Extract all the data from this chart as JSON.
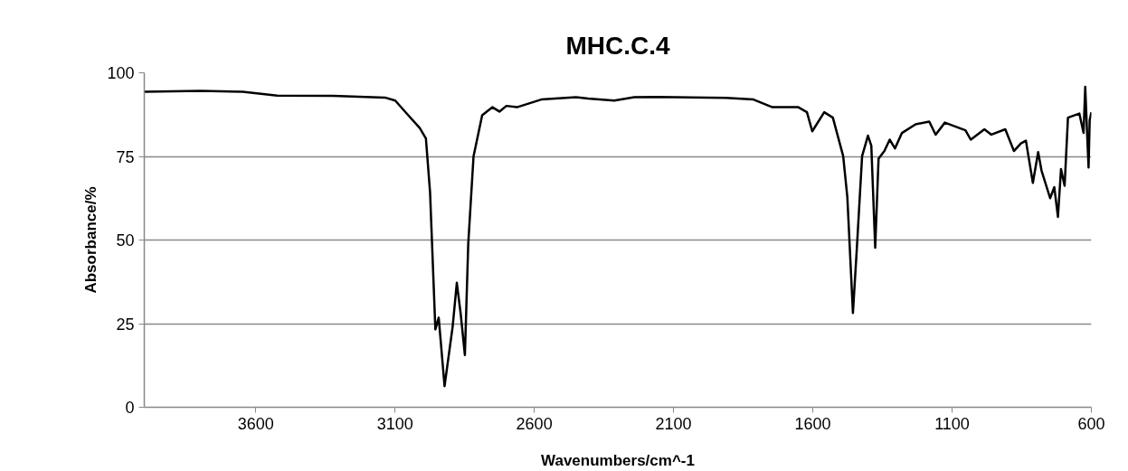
{
  "chart_data": {
    "type": "line",
    "title": "MHC.C.4",
    "xlabel": "Wavenumbers/cm^-1",
    "ylabel": "Absorbance/%",
    "xlim": [
      4000,
      600
    ],
    "xticks": [
      3600,
      3100,
      2600,
      2100,
      1600,
      1100,
      600
    ],
    "ylim": [
      0,
      100
    ],
    "yticks": [
      0,
      25,
      50,
      75,
      100
    ],
    "grid": "y",
    "marker": "none",
    "line_style": "solid",
    "series": [
      {
        "color": "#000000",
        "x": [
          4000,
          3797,
          3647,
          3523,
          3323,
          3136,
          3099,
          3061,
          3011,
          2989,
          2974,
          2955,
          2943,
          2922,
          2893,
          2878,
          2864,
          2849,
          2837,
          2818,
          2787,
          2750,
          2725,
          2700,
          2662,
          2575,
          2450,
          2407,
          2313,
          2241,
          2159,
          1912,
          1813,
          1745,
          1652,
          1621,
          1602,
          1559,
          1528,
          1491,
          1476,
          1456,
          1442,
          1423,
          1402,
          1390,
          1376,
          1364,
          1343,
          1324,
          1305,
          1280,
          1231,
          1182,
          1159,
          1126,
          1052,
          1033,
          984,
          959,
          909,
          878,
          853,
          835,
          810,
          791,
          779,
          748,
          733,
          720,
          709,
          696,
          684,
          643,
          628,
          622,
          615,
          610,
          606,
          600
        ],
        "values": [
          94.3,
          94.6,
          94.3,
          93.2,
          93.1,
          92.6,
          91.7,
          88.1,
          83.5,
          80.4,
          64.2,
          23.3,
          26.8,
          6.3,
          24.1,
          37.2,
          27.9,
          15.6,
          48.8,
          75,
          87.3,
          89.7,
          88.4,
          90.1,
          89.7,
          92,
          92.7,
          92.3,
          91.7,
          92.7,
          92.8,
          92.5,
          92,
          89.7,
          89.7,
          88.2,
          82.5,
          88.2,
          86.6,
          75.1,
          62.8,
          28.2,
          47.4,
          75.1,
          81.2,
          78.2,
          47.7,
          74.3,
          76.6,
          80,
          77.4,
          82,
          84.6,
          85.4,
          81.5,
          85.1,
          82.8,
          80,
          83.1,
          81.5,
          83.1,
          76.6,
          78.9,
          79.7,
          67.1,
          76.3,
          70.8,
          62.5,
          65.8,
          56.9,
          71.2,
          66.2,
          86.6,
          87.8,
          82,
          95.8,
          81.2,
          71.7,
          85.8,
          88.2
        ]
      }
    ]
  }
}
